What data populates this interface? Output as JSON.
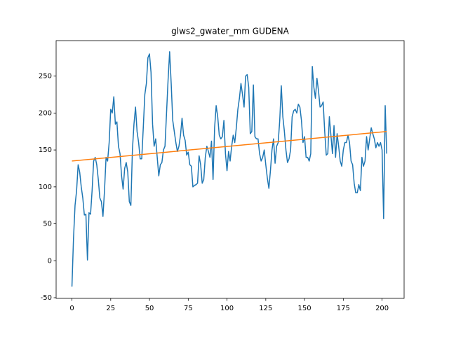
{
  "chart_data": {
    "type": "line",
    "title": "glws2_gwater_mm GUDENA",
    "series": [
      {
        "color": "#1f77b4",
        "x": [
          0,
          1,
          2,
          3,
          4,
          5,
          6,
          7,
          8,
          9,
          10,
          11,
          12,
          13,
          14,
          15,
          16,
          17,
          18,
          19,
          20,
          21,
          22,
          23,
          24,
          25,
          26,
          27,
          28,
          29,
          30,
          31,
          32,
          33,
          34,
          35,
          36,
          37,
          38,
          39,
          40,
          41,
          42,
          43,
          44,
          45,
          46,
          47,
          48,
          49,
          50,
          51,
          52,
          53,
          54,
          55,
          56,
          57,
          58,
          59,
          60,
          61,
          62,
          63,
          64,
          65,
          66,
          67,
          68,
          69,
          70,
          71,
          72,
          73,
          74,
          75,
          76,
          77,
          78,
          79,
          80,
          81,
          82,
          83,
          84,
          85,
          86,
          87,
          88,
          89,
          90,
          91,
          92,
          93,
          94,
          95,
          96,
          97,
          98,
          99,
          100,
          101,
          102,
          103,
          104,
          105,
          106,
          107,
          108,
          109,
          110,
          111,
          112,
          113,
          114,
          115,
          116,
          117,
          118,
          119,
          120,
          121,
          122,
          123,
          124,
          125,
          126,
          127,
          128,
          129,
          130,
          131,
          132,
          133,
          134,
          135,
          136,
          137,
          138,
          139,
          140,
          141,
          142,
          143,
          144,
          145,
          146,
          147,
          148,
          149,
          150,
          151,
          152,
          153,
          154,
          155,
          156,
          157,
          158,
          159,
          160,
          161,
          162,
          163,
          164,
          165,
          166,
          167,
          168,
          169,
          170,
          171,
          172,
          173,
          174,
          175,
          176,
          177,
          178,
          179,
          180,
          181,
          182,
          183,
          184,
          185,
          186,
          187,
          188,
          189,
          190,
          191,
          192,
          193,
          194,
          195,
          196,
          197,
          198,
          199,
          200,
          201,
          202,
          203
        ],
        "values": [
          -35,
          30,
          75,
          95,
          130,
          120,
          100,
          85,
          62,
          63,
          1,
          65,
          63,
          95,
          135,
          140,
          130,
          110,
          85,
          80,
          60,
          95,
          140,
          135,
          160,
          205,
          200,
          222,
          185,
          188,
          155,
          145,
          115,
          97,
          125,
          133,
          120,
          80,
          75,
          150,
          185,
          208,
          175,
          160,
          138,
          138,
          180,
          225,
          240,
          275,
          280,
          255,
          185,
          155,
          165,
          140,
          115,
          130,
          133,
          150,
          155,
          200,
          245,
          283,
          240,
          190,
          175,
          160,
          148,
          155,
          170,
          193,
          170,
          163,
          143,
          147,
          130,
          128,
          100,
          102,
          103,
          105,
          142,
          130,
          105,
          110,
          140,
          155,
          148,
          140,
          162,
          110,
          180,
          210,
          195,
          170,
          165,
          168,
          190,
          145,
          122,
          148,
          135,
          155,
          170,
          160,
          180,
          205,
          220,
          240,
          225,
          208,
          250,
          252,
          235,
          172,
          175,
          238,
          168,
          165,
          165,
          145,
          135,
          140,
          150,
          130,
          112,
          98,
          122,
          150,
          165,
          132,
          155,
          160,
          190,
          237,
          195,
          175,
          150,
          133,
          138,
          150,
          195,
          203,
          205,
          200,
          212,
          208,
          190,
          160,
          168,
          140,
          140,
          135,
          145,
          263,
          235,
          220,
          247,
          230,
          208,
          210,
          215,
          175,
          143,
          145,
          195,
          170,
          145,
          183,
          140,
          172,
          155,
          135,
          128,
          150,
          160,
          160,
          170,
          160,
          135,
          130,
          105,
          92,
          92,
          103,
          95,
          140,
          128,
          135,
          168,
          150,
          165,
          180,
          172,
          165,
          153,
          160,
          155,
          160,
          150,
          57,
          210,
          145
        ]
      },
      {
        "color": "#ff7f0e",
        "x": [
          0,
          203
        ],
        "values": [
          135,
          175
        ]
      }
    ],
    "xlim": [
      -10.2,
      214.2
    ],
    "xticks": [
      0,
      25,
      50,
      75,
      100,
      125,
      150,
      175,
      200
    ],
    "ylim": [
      -50.9,
      298
    ],
    "yticks": [
      -50,
      0,
      50,
      100,
      150,
      200,
      250
    ]
  }
}
